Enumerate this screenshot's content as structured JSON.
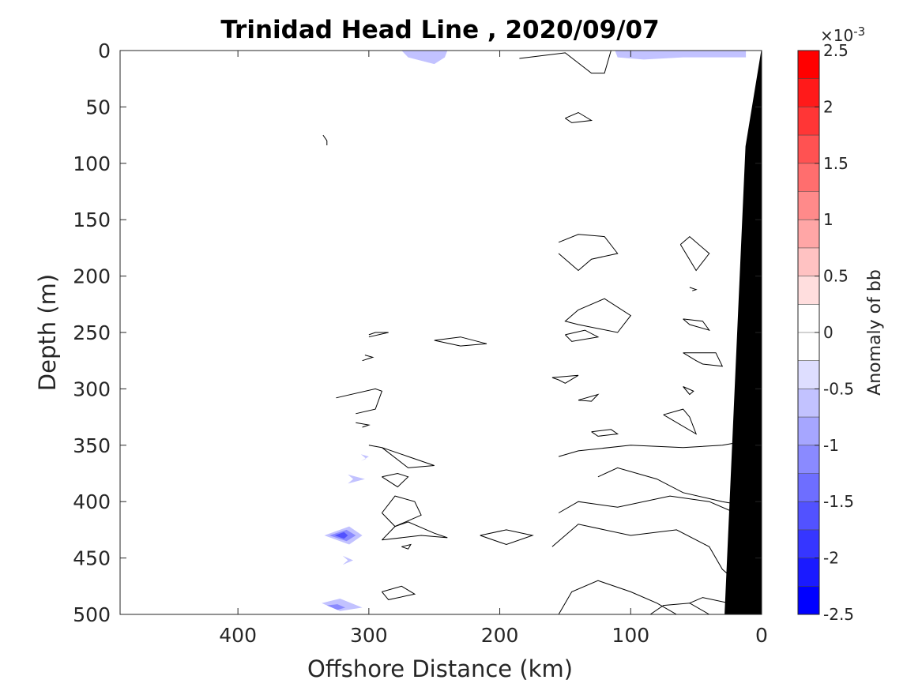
{
  "chart_data": {
    "type": "heatmap",
    "title": "Trinidad Head Line , 2020/09/07",
    "xlabel": "Offshore Distance (km)",
    "ylabel": "Depth (m)",
    "xlim": [
      490,
      0
    ],
    "ylim": [
      0,
      500
    ],
    "x_reversed": true,
    "y_reversed": true,
    "x_ticks": [
      "400",
      "300",
      "200",
      "100",
      "0"
    ],
    "x_tick_values": [
      400,
      300,
      200,
      100,
      0
    ],
    "y_ticks": [
      "0",
      "50",
      "100",
      "150",
      "200",
      "250",
      "300",
      "350",
      "400",
      "450",
      "500"
    ],
    "y_tick_values": [
      0,
      50,
      100,
      150,
      200,
      250,
      300,
      350,
      400,
      450,
      500
    ],
    "grid": false,
    "colorbar": {
      "label": "Anomaly of bb",
      "exponent_label": "×10",
      "exponent_power": "-3",
      "range": [
        -2.5,
        2.5
      ],
      "ticks": [
        "2.5",
        "2",
        "1.5",
        "1",
        "0.5",
        "0",
        "-0.5",
        "-1",
        "-1.5",
        "-2",
        "-2.5"
      ],
      "tick_values": [
        2.5,
        2,
        1.5,
        1,
        0.5,
        0,
        -0.5,
        -1,
        -1.5,
        -2,
        -2.5
      ],
      "colors_top_to_bottom": [
        "#ff0000",
        "#ff1a1a",
        "#ff3636",
        "#ff5252",
        "#ff6e6e",
        "#ff8a8a",
        "#ffa6a6",
        "#ffc2c2",
        "#ffdede",
        "#ffffff",
        "#ffffff",
        "#dedeff",
        "#c2c2ff",
        "#a6a6ff",
        "#8a8aff",
        "#6e6eff",
        "#5252ff",
        "#3636ff",
        "#1a1aff",
        "#0000ff"
      ]
    },
    "bathymetry_color": "#000000",
    "bathymetry": [
      [
        0,
        0
      ],
      [
        12,
        85
      ],
      [
        28,
        500
      ],
      [
        0,
        500
      ]
    ],
    "negative_patches": [
      {
        "level": -0.5,
        "points": [
          [
            275,
            0
          ],
          [
            270,
            6
          ],
          [
            250,
            12
          ],
          [
            242,
            6
          ],
          [
            240,
            0
          ]
        ]
      },
      {
        "level": -0.5,
        "points": [
          [
            112,
            0
          ],
          [
            110,
            6
          ],
          [
            90,
            8
          ],
          [
            60,
            6
          ],
          [
            12,
            6
          ],
          [
            12,
            0
          ]
        ]
      },
      {
        "level": -0.5,
        "points": [
          [
            306,
            358
          ],
          [
            300,
            360
          ],
          [
            306,
            364
          ],
          [
            302,
            362
          ]
        ]
      },
      {
        "level": -0.5,
        "points": [
          [
            316,
            376
          ],
          [
            303,
            380
          ],
          [
            316,
            384
          ],
          [
            312,
            380
          ]
        ]
      },
      {
        "level": -0.5,
        "points": [
          [
            320,
            448
          ],
          [
            312,
            452
          ],
          [
            320,
            456
          ],
          [
            316,
            452
          ]
        ]
      },
      {
        "level": -0.5,
        "points": [
          [
            334,
            430
          ],
          [
            315,
            422
          ],
          [
            305,
            430
          ],
          [
            315,
            438
          ]
        ]
      },
      {
        "level": -1.0,
        "points": [
          [
            330,
            430
          ],
          [
            317,
            425
          ],
          [
            310,
            430
          ],
          [
            317,
            435
          ]
        ]
      },
      {
        "level": -1.5,
        "points": [
          [
            326,
            430
          ],
          [
            319,
            427
          ],
          [
            316,
            430
          ],
          [
            319,
            433
          ]
        ]
      },
      {
        "level": -0.5,
        "points": [
          [
            336,
            490
          ],
          [
            322,
            486
          ],
          [
            305,
            494
          ],
          [
            322,
            497
          ]
        ]
      },
      {
        "level": -1.0,
        "points": [
          [
            332,
            492
          ],
          [
            324,
            491
          ],
          [
            318,
            494
          ],
          [
            324,
            496
          ]
        ]
      }
    ],
    "zero_contours": [
      [
        [
          185,
          7
        ],
        [
          150,
          2
        ],
        [
          130,
          20
        ],
        [
          120,
          20
        ],
        [
          115,
          0
        ]
      ],
      [
        [
          150,
          60
        ],
        [
          140,
          55
        ],
        [
          130,
          62
        ],
        [
          145,
          64
        ],
        [
          150,
          60
        ]
      ],
      [
        [
          335,
          75
        ],
        [
          332,
          80
        ],
        [
          332,
          84
        ]
      ],
      [
        [
          155,
          170
        ],
        [
          140,
          163
        ],
        [
          120,
          165
        ],
        [
          110,
          180
        ],
        [
          130,
          185
        ],
        [
          140,
          195
        ],
        [
          155,
          180
        ]
      ],
      [
        [
          62,
          172
        ],
        [
          55,
          165
        ],
        [
          40,
          180
        ],
        [
          50,
          195
        ],
        [
          62,
          172
        ]
      ],
      [
        [
          55,
          210
        ],
        [
          50,
          212
        ],
        [
          53,
          213
        ]
      ],
      [
        [
          140,
          230
        ],
        [
          120,
          220
        ],
        [
          100,
          235
        ],
        [
          110,
          250
        ],
        [
          140,
          243
        ],
        [
          150,
          240
        ],
        [
          140,
          230
        ]
      ],
      [
        [
          60,
          238
        ],
        [
          45,
          240
        ],
        [
          40,
          248
        ],
        [
          55,
          243
        ],
        [
          60,
          238
        ]
      ],
      [
        [
          150,
          252
        ],
        [
          135,
          248
        ],
        [
          125,
          254
        ],
        [
          145,
          258
        ],
        [
          150,
          252
        ]
      ],
      [
        [
          250,
          257
        ],
        [
          230,
          254
        ],
        [
          210,
          260
        ],
        [
          230,
          262
        ],
        [
          250,
          257
        ]
      ],
      [
        [
          60,
          268
        ],
        [
          50,
          275
        ],
        [
          45,
          278
        ],
        [
          30,
          280
        ],
        [
          35,
          268
        ],
        [
          60,
          268
        ]
      ],
      [
        [
          300,
          252
        ],
        [
          295,
          250
        ],
        [
          285,
          250
        ],
        [
          300,
          254
        ]
      ],
      [
        [
          303,
          270
        ],
        [
          297,
          272
        ],
        [
          305,
          275
        ]
      ],
      [
        [
          325,
          308
        ],
        [
          295,
          300
        ],
        [
          290,
          302
        ],
        [
          295,
          318
        ],
        [
          310,
          322
        ]
      ],
      [
        [
          160,
          290
        ],
        [
          155,
          292
        ],
        [
          150,
          295
        ],
        [
          140,
          288
        ],
        [
          160,
          290
        ]
      ],
      [
        [
          60,
          298
        ],
        [
          52,
          302
        ],
        [
          55,
          305
        ],
        [
          60,
          298
        ]
      ],
      [
        [
          140,
          310
        ],
        [
          130,
          311
        ],
        [
          125,
          305
        ],
        [
          140,
          310
        ]
      ],
      [
        [
          130,
          338
        ],
        [
          115,
          336
        ],
        [
          110,
          340
        ],
        [
          125,
          342
        ],
        [
          130,
          338
        ]
      ],
      [
        [
          75,
          323
        ],
        [
          60,
          318
        ],
        [
          55,
          325
        ],
        [
          50,
          340
        ],
        [
          75,
          323
        ]
      ],
      [
        [
          310,
          330
        ],
        [
          300,
          332
        ],
        [
          305,
          334
        ]
      ],
      [
        [
          300,
          350
        ],
        [
          290,
          352
        ],
        [
          270,
          360
        ],
        [
          250,
          368
        ],
        [
          270,
          370
        ],
        [
          290,
          352
        ]
      ],
      [
        [
          290,
          378
        ],
        [
          278,
          375
        ],
        [
          270,
          378
        ],
        [
          278,
          387
        ],
        [
          290,
          378
        ]
      ],
      [
        [
          290,
          410
        ],
        [
          280,
          395
        ],
        [
          265,
          400
        ],
        [
          260,
          412
        ],
        [
          280,
          422
        ],
        [
          290,
          410
        ]
      ],
      [
        [
          275,
          440
        ],
        [
          270,
          442
        ],
        [
          268,
          438
        ],
        [
          275,
          440
        ]
      ],
      [
        [
          290,
          434
        ],
        [
          260,
          430
        ],
        [
          240,
          432
        ],
        [
          250,
          428
        ],
        [
          270,
          418
        ],
        [
          280,
          422
        ],
        [
          290,
          434
        ]
      ],
      [
        [
          215,
          430
        ],
        [
          195,
          425
        ],
        [
          175,
          430
        ],
        [
          195,
          438
        ],
        [
          215,
          430
        ]
      ],
      [
        [
          290,
          480
        ],
        [
          275,
          475
        ],
        [
          265,
          482
        ],
        [
          285,
          487
        ],
        [
          290,
          480
        ]
      ],
      [
        [
          155,
          360
        ],
        [
          140,
          355
        ],
        [
          100,
          350
        ],
        [
          60,
          352
        ],
        [
          30,
          350
        ],
        [
          20,
          348
        ]
      ],
      [
        [
          125,
          378
        ],
        [
          110,
          370
        ],
        [
          80,
          380
        ],
        [
          60,
          392
        ],
        [
          30,
          400
        ],
        [
          20,
          402
        ]
      ],
      [
        [
          155,
          410
        ],
        [
          140,
          400
        ],
        [
          110,
          405
        ],
        [
          70,
          395
        ],
        [
          40,
          400
        ],
        [
          20,
          410
        ]
      ],
      [
        [
          160,
          440
        ],
        [
          140,
          420
        ],
        [
          100,
          430
        ],
        [
          65,
          425
        ],
        [
          40,
          440
        ],
        [
          30,
          460
        ],
        [
          20,
          470
        ]
      ],
      [
        [
          155,
          500
        ],
        [
          145,
          480
        ],
        [
          125,
          470
        ],
        [
          100,
          480
        ],
        [
          80,
          490
        ],
        [
          65,
          500
        ]
      ],
      [
        [
          85,
          500
        ],
        [
          75,
          492
        ],
        [
          55,
          490
        ],
        [
          40,
          500
        ]
      ],
      [
        [
          55,
          490
        ],
        [
          45,
          485
        ],
        [
          25,
          490
        ]
      ]
    ]
  }
}
